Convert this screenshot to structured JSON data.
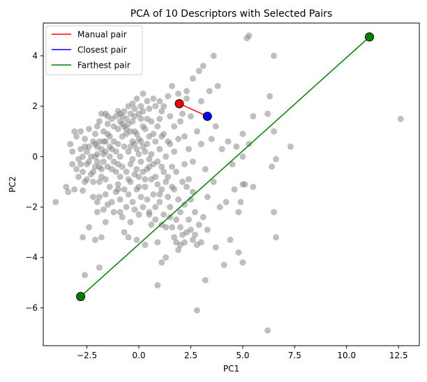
{
  "chart_data": {
    "type": "scatter",
    "title": "PCA of 10 Descriptors with Selected Pairs",
    "xlabel": "PC1",
    "ylabel": "PC2",
    "xlim": [
      -4.6,
      13.5
    ],
    "ylim": [
      -7.5,
      5.3
    ],
    "x_ticks": [
      -2.5,
      0.0,
      2.5,
      5.0,
      7.5,
      10.0,
      12.5
    ],
    "x_tick_labels": [
      "−2.5",
      "0.0",
      "2.5",
      "5.0",
      "7.5",
      "10.0",
      "12.5"
    ],
    "y_ticks": [
      -6,
      -4,
      -2,
      0,
      2,
      4
    ],
    "y_tick_labels": [
      "−6",
      "−4",
      "−2",
      "0",
      "2",
      "4"
    ],
    "grid": false,
    "legend_position": "top-left",
    "point_color": "#808080",
    "series": [
      {
        "name": "Manual pair",
        "color": "#ff0000",
        "marker_color": "#ff0000",
        "points": [
          [
            1.95,
            2.1
          ],
          [
            3.3,
            1.6
          ]
        ]
      },
      {
        "name": "Closest pair",
        "color": "#0000ff",
        "marker_color": "#0000ff",
        "points": [
          [
            3.3,
            1.6
          ]
        ]
      },
      {
        "name": "Farthest pair",
        "color": "#008000",
        "marker_color": "#008000",
        "points": [
          [
            -2.8,
            -5.55
          ],
          [
            11.1,
            4.75
          ]
        ]
      }
    ],
    "points": [
      [
        -3.4,
        -1.4
      ],
      [
        -3.1,
        -1.3
      ],
      [
        -3.0,
        -0.5
      ],
      [
        -2.6,
        -1.0
      ],
      [
        -2.7,
        -1.35
      ],
      [
        -2.9,
        -0.1
      ],
      [
        -2.8,
        0.3
      ],
      [
        -2.5,
        -0.3
      ],
      [
        -2.4,
        0.4
      ],
      [
        -2.2,
        -0.6
      ],
      [
        -3.3,
        0.5
      ],
      [
        -3.2,
        0.2
      ],
      [
        -3.0,
        0.8
      ],
      [
        -3.1,
        1.0
      ],
      [
        -2.8,
        1.0
      ],
      [
        -2.6,
        0.7
      ],
      [
        -2.4,
        1.1
      ],
      [
        -2.3,
        0.0
      ],
      [
        -2.1,
        0.5
      ],
      [
        -2.0,
        -0.2
      ],
      [
        -2.7,
        -0.6
      ],
      [
        -2.9,
        -0.8
      ],
      [
        -3.2,
        -0.3
      ],
      [
        -2.5,
        -0.9
      ],
      [
        -2.2,
        -1.6
      ],
      [
        -2.0,
        -1.8
      ],
      [
        -1.9,
        -1.0
      ],
      [
        -1.8,
        -0.5
      ],
      [
        -1.7,
        0.1
      ],
      [
        -1.6,
        0.6
      ],
      [
        -2.0,
        1.2
      ],
      [
        -2.1,
        0.9
      ],
      [
        -1.9,
        1.4
      ],
      [
        -1.7,
        1.0
      ],
      [
        -1.5,
        1.3
      ],
      [
        -1.4,
        0.8
      ],
      [
        -1.3,
        0.3
      ],
      [
        -1.2,
        -0.2
      ],
      [
        -1.1,
        -0.6
      ],
      [
        -1.0,
        -1.1
      ],
      [
        -1.8,
        1.7
      ],
      [
        -1.6,
        1.7
      ],
      [
        -1.5,
        1.6
      ],
      [
        -1.3,
        1.5
      ],
      [
        -1.2,
        1.2
      ],
      [
        -1.0,
        1.1
      ],
      [
        -0.9,
        1.4
      ],
      [
        -0.8,
        1.6
      ],
      [
        -0.7,
        1.8
      ],
      [
        -0.5,
        2.0
      ],
      [
        -0.3,
        2.1
      ],
      [
        -0.2,
        1.9
      ],
      [
        -0.1,
        2.3
      ],
      [
        0.1,
        2.0
      ],
      [
        0.2,
        2.5
      ],
      [
        0.4,
        2.2
      ],
      [
        0.5,
        1.9
      ],
      [
        0.7,
        2.3
      ],
      [
        0.8,
        2.0
      ],
      [
        1.0,
        2.2
      ],
      [
        -1.9,
        -1.6
      ],
      [
        -1.7,
        -2.1
      ],
      [
        -1.6,
        -1.5
      ],
      [
        -1.5,
        -1.9
      ],
      [
        -1.4,
        -1.2
      ],
      [
        -1.3,
        -1.8
      ],
      [
        -1.2,
        -2.2
      ],
      [
        -1.1,
        -1.4
      ],
      [
        -0.9,
        -1.7
      ],
      [
        -0.8,
        -2.4
      ],
      [
        -0.7,
        -1.3
      ],
      [
        -0.6,
        -2.0
      ],
      [
        -0.5,
        -1.5
      ],
      [
        -0.4,
        -1.0
      ],
      [
        -0.3,
        -1.8
      ],
      [
        -0.2,
        -2.1
      ],
      [
        -0.1,
        -1.3
      ],
      [
        0.0,
        -0.8
      ],
      [
        0.1,
        -1.6
      ],
      [
        0.2,
        -2.0
      ],
      [
        -1.0,
        0.5
      ],
      [
        -0.9,
        0.0
      ],
      [
        -0.8,
        -0.4
      ],
      [
        -0.7,
        0.4
      ],
      [
        -0.6,
        0.9
      ],
      [
        -0.5,
        0.2
      ],
      [
        -0.4,
        -0.3
      ],
      [
        -0.3,
        0.6
      ],
      [
        -0.2,
        1.0
      ],
      [
        -0.1,
        0.3
      ],
      [
        0.0,
        0.7
      ],
      [
        0.1,
        -0.2
      ],
      [
        0.2,
        0.4
      ],
      [
        0.3,
        1.1
      ],
      [
        0.4,
        -0.5
      ],
      [
        0.5,
        0.8
      ],
      [
        0.6,
        0.1
      ],
      [
        0.7,
        -0.3
      ],
      [
        0.8,
        0.6
      ],
      [
        0.9,
        1.2
      ],
      [
        1.0,
        0.3
      ],
      [
        1.1,
        -0.4
      ],
      [
        1.2,
        0.9
      ],
      [
        1.3,
        0.0
      ],
      [
        1.4,
        -0.8
      ],
      [
        1.5,
        0.5
      ],
      [
        1.6,
        -1.2
      ],
      [
        1.7,
        0.2
      ],
      [
        1.8,
        -0.6
      ],
      [
        1.9,
        0.7
      ],
      [
        0.3,
        -1.2
      ],
      [
        0.4,
        -1.7
      ],
      [
        0.5,
        -2.2
      ],
      [
        0.6,
        -0.9
      ],
      [
        0.7,
        -1.5
      ],
      [
        0.8,
        -2.0
      ],
      [
        0.9,
        -1.1
      ],
      [
        1.0,
        -1.8
      ],
      [
        1.1,
        -1.3
      ],
      [
        1.2,
        -2.3
      ],
      [
        1.3,
        -1.0
      ],
      [
        1.4,
        -1.6
      ],
      [
        1.5,
        -2.0
      ],
      [
        1.6,
        -0.4
      ],
      [
        1.7,
        -1.3
      ],
      [
        1.8,
        -2.5
      ],
      [
        1.9,
        -1.7
      ],
      [
        2.0,
        -2.2
      ],
      [
        2.1,
        -1.0
      ],
      [
        2.2,
        -0.3
      ],
      [
        -1.4,
        0.0
      ],
      [
        -1.5,
        -0.4
      ],
      [
        -1.6,
        -0.9
      ],
      [
        -1.7,
        -0.2
      ],
      [
        -1.8,
        0.3
      ],
      [
        -1.9,
        0.6
      ],
      [
        -2.0,
        0.1
      ],
      [
        -2.1,
        -0.4
      ],
      [
        -2.2,
        -1.0
      ],
      [
        -2.3,
        -0.7
      ],
      [
        -2.4,
        -0.2
      ],
      [
        -2.5,
        0.2
      ],
      [
        -2.6,
        0.4
      ],
      [
        -2.7,
        0.0
      ],
      [
        -2.8,
        -0.3
      ],
      [
        -1.2,
        0.6
      ],
      [
        -1.1,
        0.2
      ],
      [
        -1.0,
        -0.3
      ],
      [
        -0.9,
        -0.8
      ],
      [
        -0.8,
        0.8
      ],
      [
        -0.7,
        1.2
      ],
      [
        -0.6,
        1.5
      ],
      [
        -0.5,
        1.3
      ],
      [
        -0.4,
        1.7
      ],
      [
        -0.3,
        1.4
      ],
      [
        -0.2,
        0.5
      ],
      [
        -0.1,
        -0.5
      ],
      [
        0.0,
        -1.2
      ],
      [
        0.1,
        1.5
      ],
      [
        0.2,
        1.2
      ],
      [
        0.3,
        0.2
      ],
      [
        0.4,
        0.5
      ],
      [
        0.5,
        -0.1
      ],
      [
        0.6,
        1.4
      ],
      [
        0.7,
        0.9
      ],
      [
        0.8,
        -0.8
      ],
      [
        0.9,
        -0.2
      ],
      [
        1.0,
        1.5
      ],
      [
        1.1,
        0.8
      ],
      [
        1.2,
        -0.6
      ],
      [
        -1.3,
        -0.5
      ],
      [
        -1.4,
        0.4
      ],
      [
        -1.5,
        0.9
      ],
      [
        -1.6,
        0.2
      ],
      [
        -1.7,
        0.6
      ],
      [
        -1.8,
        -0.8
      ],
      [
        -1.9,
        -0.4
      ],
      [
        -2.0,
        0.4
      ],
      [
        -2.1,
        0.0
      ],
      [
        -2.2,
        0.6
      ],
      [
        -0.6,
        -0.6
      ],
      [
        -0.5,
        -0.9
      ],
      [
        -0.4,
        0.4
      ],
      [
        -0.3,
        -0.1
      ],
      [
        -0.2,
        -0.7
      ],
      [
        -0.1,
        0.9
      ],
      [
        0.0,
        0.1
      ],
      [
        0.1,
        0.6
      ],
      [
        0.2,
        -0.6
      ],
      [
        0.3,
        -0.9
      ],
      [
        -1.1,
        1.6
      ],
      [
        -1.0,
        1.8
      ],
      [
        -0.9,
        1.7
      ],
      [
        -0.8,
        1.3
      ],
      [
        -0.6,
        1.1
      ],
      [
        -0.4,
        1.0
      ],
      [
        -0.2,
        1.6
      ],
      [
        0.0,
        1.7
      ],
      [
        0.2,
        1.8
      ],
      [
        0.4,
        1.5
      ],
      [
        2.3,
        2.6
      ],
      [
        2.6,
        3.1
      ],
      [
        2.9,
        3.4
      ],
      [
        3.0,
        2.2
      ],
      [
        3.4,
        2.6
      ],
      [
        3.6,
        4.0
      ],
      [
        3.8,
        2.8
      ],
      [
        3.1,
        3.6
      ],
      [
        2.5,
        1.6
      ],
      [
        2.2,
        0.8
      ],
      [
        2.4,
        0.3
      ],
      [
        2.6,
        -0.2
      ],
      [
        2.8,
        1.0
      ],
      [
        3.0,
        0.5
      ],
      [
        3.2,
        -0.5
      ],
      [
        3.5,
        0.7
      ],
      [
        3.7,
        1.2
      ],
      [
        4.0,
        0.3
      ],
      [
        4.3,
        0.6
      ],
      [
        4.5,
        -0.3
      ],
      [
        2.3,
        -1.2
      ],
      [
        2.5,
        -1.7
      ],
      [
        2.7,
        -2.2
      ],
      [
        2.9,
        -2.7
      ],
      [
        3.1,
        -2.4
      ],
      [
        3.3,
        -1.6
      ],
      [
        3.6,
        -1.0
      ],
      [
        3.9,
        -2.0
      ],
      [
        4.2,
        -1.8
      ],
      [
        4.6,
        -1.3
      ],
      [
        2.0,
        -2.8
      ],
      [
        2.4,
        -2.5
      ],
      [
        2.7,
        -3.1
      ],
      [
        3.0,
        -3.4
      ],
      [
        3.3,
        -2.9
      ],
      [
        3.7,
        -3.6
      ],
      [
        4.4,
        -3.3
      ],
      [
        4.8,
        -2.2
      ],
      [
        2.2,
        -1.9
      ],
      [
        2.6,
        -1.4
      ],
      [
        5.0,
        0.9
      ],
      [
        5.0,
        0.0
      ],
      [
        5.5,
        1.6
      ],
      [
        5.0,
        -1.1
      ],
      [
        4.8,
        -3.8
      ],
      [
        5.0,
        -4.2
      ],
      [
        4.1,
        -4.3
      ],
      [
        3.2,
        -4.9
      ],
      [
        1.1,
        -4.2
      ],
      [
        0.9,
        -5.1
      ],
      [
        2.8,
        -6.1
      ],
      [
        6.2,
        -6.9
      ],
      [
        6.3,
        2.4
      ],
      [
        6.5,
        1.0
      ],
      [
        6.4,
        -0.4
      ],
      [
        6.6,
        -0.1
      ],
      [
        6.5,
        -2.2
      ],
      [
        6.6,
        -3.2
      ],
      [
        7.3,
        0.4
      ],
      [
        12.6,
        1.5
      ],
      [
        5.2,
        4.7
      ],
      [
        5.3,
        4.8
      ],
      [
        6.5,
        4.0
      ],
      [
        6.2,
        1.7
      ],
      [
        5.3,
        0.5
      ],
      [
        5.5,
        -1.2
      ],
      [
        4.9,
        -1.8
      ],
      [
        5.1,
        -1.1
      ],
      [
        4.7,
        0.4
      ],
      [
        -1.6,
        -2.6
      ],
      [
        -1.8,
        -3.2
      ],
      [
        -2.1,
        -3.3
      ],
      [
        -2.6,
        -4.7
      ],
      [
        -1.9,
        -4.4
      ],
      [
        -2.4,
        -2.8
      ],
      [
        -2.7,
        -3.2
      ],
      [
        -2.0,
        -2.2
      ],
      [
        -3.5,
        -1.2
      ],
      [
        -4.0,
        -1.8
      ],
      [
        -1.0,
        -1.3
      ],
      [
        -0.5,
        -3.2
      ],
      [
        -0.1,
        -3.3
      ],
      [
        0.3,
        -3.5
      ],
      [
        0.6,
        -2.7
      ],
      [
        0.8,
        -2.5
      ],
      [
        1.1,
        -2.7
      ],
      [
        1.3,
        -2.8
      ],
      [
        1.5,
        -2.4
      ],
      [
        1.6,
        -2.8
      ],
      [
        1.7,
        -3.2
      ],
      [
        1.8,
        -3.4
      ],
      [
        1.9,
        -3.7
      ],
      [
        2.0,
        -3.5
      ],
      [
        2.1,
        -3.1
      ],
      [
        2.2,
        -3.4
      ],
      [
        2.3,
        -3.0
      ],
      [
        2.5,
        -2.9
      ],
      [
        2.6,
        -3.3
      ],
      [
        2.8,
        -3.5
      ],
      [
        0.0,
        -2.3
      ],
      [
        1.6,
        2.8
      ],
      [
        1.9,
        2.5
      ],
      [
        2.1,
        1.7
      ],
      [
        2.3,
        2.3
      ],
      [
        1.4,
        2.4
      ],
      [
        1.2,
        2.0
      ],
      [
        1.5,
        1.6
      ],
      [
        1.7,
        1.2
      ],
      [
        1.1,
        1.8
      ],
      [
        2.0,
        1.4
      ],
      [
        -0.7,
        -3.0
      ],
      [
        -0.4,
        -2.6
      ],
      [
        0.5,
        -2.3
      ],
      [
        0.9,
        -3.4
      ],
      [
        1.3,
        -4.0
      ],
      [
        1.0,
        -1.5
      ],
      [
        0.5,
        -0.4
      ],
      [
        1.4,
        0.6
      ],
      [
        -0.9,
        -2.2
      ],
      [
        2.4,
        -0.9
      ]
    ]
  }
}
